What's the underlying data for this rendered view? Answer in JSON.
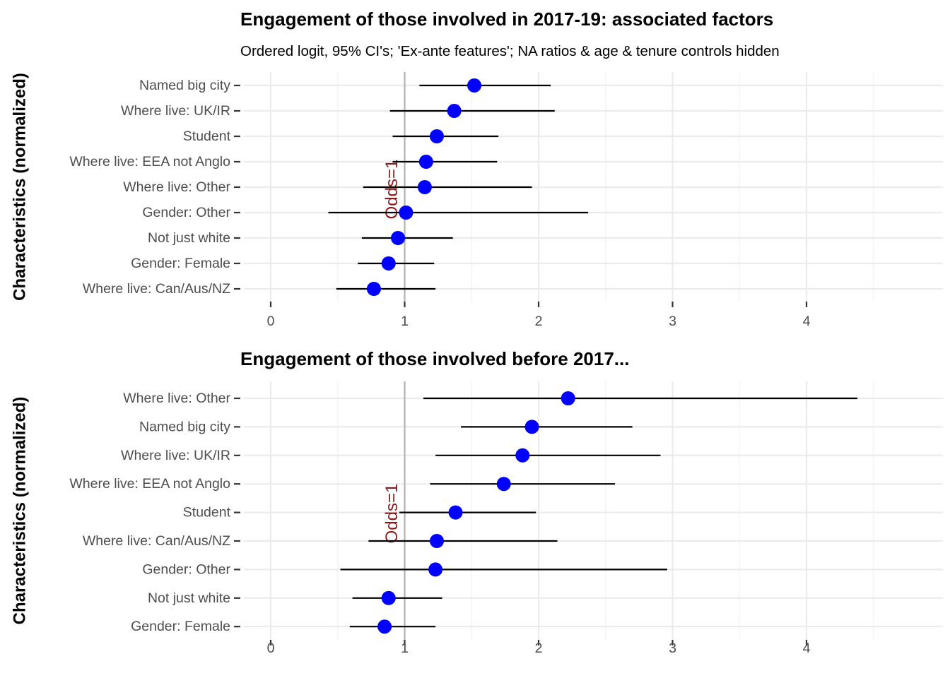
{
  "chart_data": [
    {
      "type": "scatter",
      "title": "Engagement of those involved in 2017-19: associated factors",
      "subtitle": "Ordered logit, 95% CI's; 'Ex-ante features'; NA ratios & age & tenure controls hidden",
      "ylabel": "Characteristics (normalized)",
      "xlabel": "",
      "xlim": [
        -0.2,
        4.97
      ],
      "x_ticks": [
        0,
        1,
        2,
        3,
        4
      ],
      "x_tick_labels": [
        "0",
        "1",
        "2",
        "3",
        "4"
      ],
      "grid": true,
      "reference_line": {
        "x": 1,
        "label": "Odds=1"
      },
      "categories": [
        "Named big city",
        "Where live: UK/IR",
        "Student",
        "Where live: EEA not Anglo",
        "Where live: Other",
        "Gender: Other",
        "Not just white",
        "Gender: Female",
        "Where live: Can/Aus/NZ"
      ],
      "estimates": [
        1.52,
        1.37,
        1.24,
        1.16,
        1.15,
        1.01,
        0.95,
        0.88,
        0.77
      ],
      "ci_low": [
        1.11,
        0.89,
        0.91,
        0.91,
        0.69,
        0.43,
        0.68,
        0.65,
        0.49
      ],
      "ci_high": [
        2.09,
        2.12,
        1.7,
        1.69,
        1.95,
        2.37,
        1.36,
        1.22,
        1.23
      ]
    },
    {
      "type": "scatter",
      "title": "Engagement of those involved before 2017...",
      "subtitle": "",
      "ylabel": "Characteristics (normalized)",
      "xlabel": "",
      "xlim": [
        -0.2,
        4.97
      ],
      "x_ticks": [
        0,
        1,
        2,
        3,
        4
      ],
      "x_tick_labels": [
        "0",
        "1",
        "2",
        "3",
        "4"
      ],
      "grid": true,
      "reference_line": {
        "x": 1,
        "label": "Odds=1"
      },
      "categories": [
        "Where live: Other",
        "Named big city",
        "Where live: UK/IR",
        "Where live: EEA not Anglo",
        "Student",
        "Where live: Can/Aus/NZ",
        "Gender: Other",
        "Not just white",
        "Gender: Female"
      ],
      "estimates": [
        2.22,
        1.95,
        1.88,
        1.74,
        1.38,
        1.24,
        1.23,
        0.88,
        0.85
      ],
      "ci_low": [
        1.14,
        1.42,
        1.23,
        1.19,
        0.96,
        0.73,
        0.52,
        0.61,
        0.59
      ],
      "ci_high": [
        4.38,
        2.7,
        2.91,
        2.57,
        1.98,
        2.14,
        2.96,
        1.28,
        1.23
      ]
    }
  ],
  "colors": {
    "point": "#0000ff",
    "ci_line": "#000000",
    "reference_line": "#b3b3b3",
    "reference_label": "#8b1a1a",
    "grid_major": "#ebebeb",
    "grid_minor": "#f2f2f2"
  }
}
